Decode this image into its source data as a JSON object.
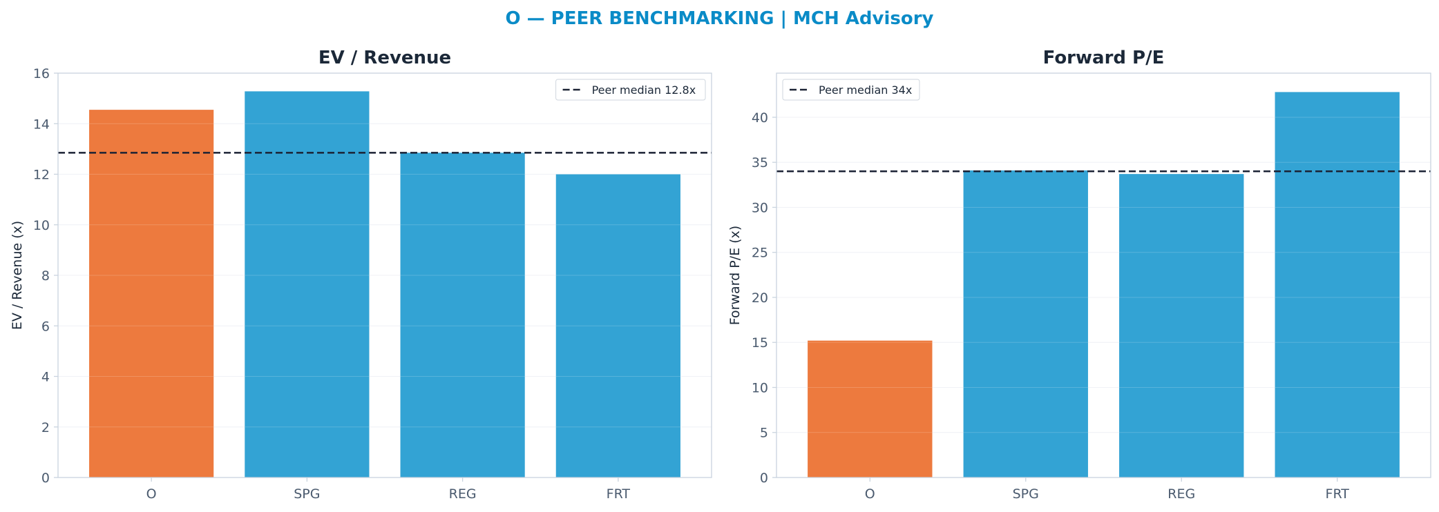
{
  "suptitle": "O — PEER BENCHMARKING | MCH Advisory",
  "colors": {
    "title": "#0a8bc7",
    "highlight_bar": "#ed7a3e",
    "peer_bar": "#33a3d4",
    "median_line": "#1b2234",
    "grid": "#edf0f4",
    "spine": "#c9d3de",
    "tick_text": "#4a5a6e"
  },
  "chart_data": [
    {
      "type": "bar",
      "title": "EV / Revenue",
      "xlabel": "",
      "ylabel": "EV / Revenue (x)",
      "categories": [
        "O",
        "SPG",
        "REG",
        "FRT"
      ],
      "values": [
        14.55,
        15.28,
        12.85,
        12.0
      ],
      "highlight": "O",
      "ylim": [
        0,
        16
      ],
      "yticks": [
        0,
        2,
        4,
        6,
        8,
        10,
        12,
        14,
        16
      ],
      "reference_line": {
        "value": 12.85,
        "label": "Peer median 12.8x",
        "style": "dashed"
      },
      "legend_position": "top-right",
      "grid": true
    },
    {
      "type": "bar",
      "title": "Forward P/E",
      "xlabel": "",
      "ylabel": "Forward P/E (x)",
      "categories": [
        "O",
        "SPG",
        "REG",
        "FRT"
      ],
      "values": [
        15.2,
        34.1,
        33.7,
        42.8
      ],
      "highlight": "O",
      "ylim": [
        0,
        44.9
      ],
      "yticks": [
        0,
        5,
        10,
        15,
        20,
        25,
        30,
        35,
        40
      ],
      "reference_line": {
        "value": 34.0,
        "label": "Peer median 34x",
        "style": "dashed"
      },
      "legend_position": "top-left",
      "grid": true
    }
  ]
}
